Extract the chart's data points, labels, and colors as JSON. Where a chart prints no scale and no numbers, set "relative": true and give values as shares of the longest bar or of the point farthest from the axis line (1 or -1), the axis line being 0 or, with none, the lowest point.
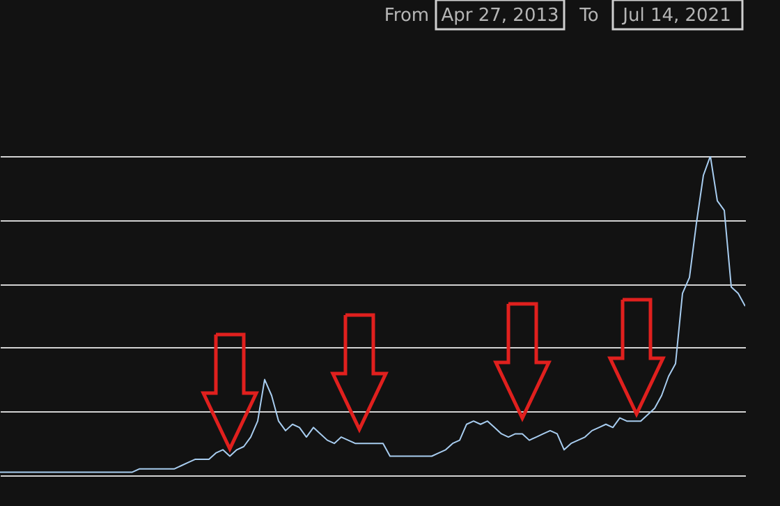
{
  "chart_data": {
    "type": "line",
    "relative": true,
    "grid": "y",
    "tick_labels": false,
    "line_style": "solid",
    "annotations": [
      "From",
      "Apr 27, 2013",
      "To",
      "Jul 14, 2021"
    ],
    "categories": [
      null,
      null,
      null,
      null,
      null,
      null,
      null,
      null,
      null,
      null,
      null,
      null,
      null,
      null,
      null,
      null,
      null,
      null,
      null,
      null,
      null,
      null,
      null,
      null,
      null,
      null,
      null,
      null,
      null,
      null,
      null,
      null,
      null,
      null,
      null,
      null,
      null,
      null,
      null,
      null,
      null,
      null,
      null,
      null,
      null,
      null,
      null,
      null,
      null,
      null,
      null,
      null,
      null,
      null,
      null,
      null,
      null,
      null,
      null,
      null,
      null,
      null,
      null,
      null,
      null,
      null,
      null,
      null,
      null,
      null,
      null,
      null,
      null,
      null,
      null,
      null,
      null,
      null,
      null,
      null,
      null,
      null,
      null,
      null,
      null,
      null,
      null,
      null,
      null,
      null,
      null,
      null,
      null,
      null,
      null,
      null,
      null,
      null,
      null,
      null,
      null,
      null,
      null,
      null,
      null,
      null,
      null,
      null
    ],
    "series": [
      {
        "color": "#a8cdf0",
        "values": [
          0.01,
          0.01,
          0.01,
          0.01,
          0.01,
          0.01,
          0.01,
          0.01,
          0.01,
          0.01,
          0.01,
          0.01,
          0.01,
          0.01,
          0.01,
          0.01,
          0.01,
          0.01,
          0.01,
          0.01,
          0.02,
          0.02,
          0.02,
          0.02,
          0.02,
          0.02,
          0.03,
          0.04,
          0.05,
          0.05,
          0.05,
          0.07,
          0.08,
          0.06,
          0.08,
          0.09,
          0.12,
          0.17,
          0.3,
          0.25,
          0.17,
          0.14,
          0.16,
          0.15,
          0.12,
          0.15,
          0.13,
          0.11,
          0.1,
          0.12,
          0.11,
          0.1,
          0.1,
          0.1,
          0.1,
          0.1,
          0.06,
          0.06,
          0.06,
          0.06,
          0.06,
          0.06,
          0.06,
          0.07,
          0.08,
          0.1,
          0.11,
          0.16,
          0.17,
          0.16,
          0.17,
          0.15,
          0.13,
          0.12,
          0.13,
          0.13,
          0.11,
          0.12,
          0.13,
          0.14,
          0.13,
          0.08,
          0.1,
          0.11,
          0.12,
          0.14,
          0.15,
          0.16,
          0.15,
          0.18,
          0.17,
          0.17,
          0.17,
          0.19,
          0.21,
          0.25,
          0.31,
          0.35,
          0.57,
          0.62,
          0.79,
          0.94,
          1,
          0.86,
          0.83,
          0.59,
          0.57,
          0.53
        ]
      }
    ]
  }
}
